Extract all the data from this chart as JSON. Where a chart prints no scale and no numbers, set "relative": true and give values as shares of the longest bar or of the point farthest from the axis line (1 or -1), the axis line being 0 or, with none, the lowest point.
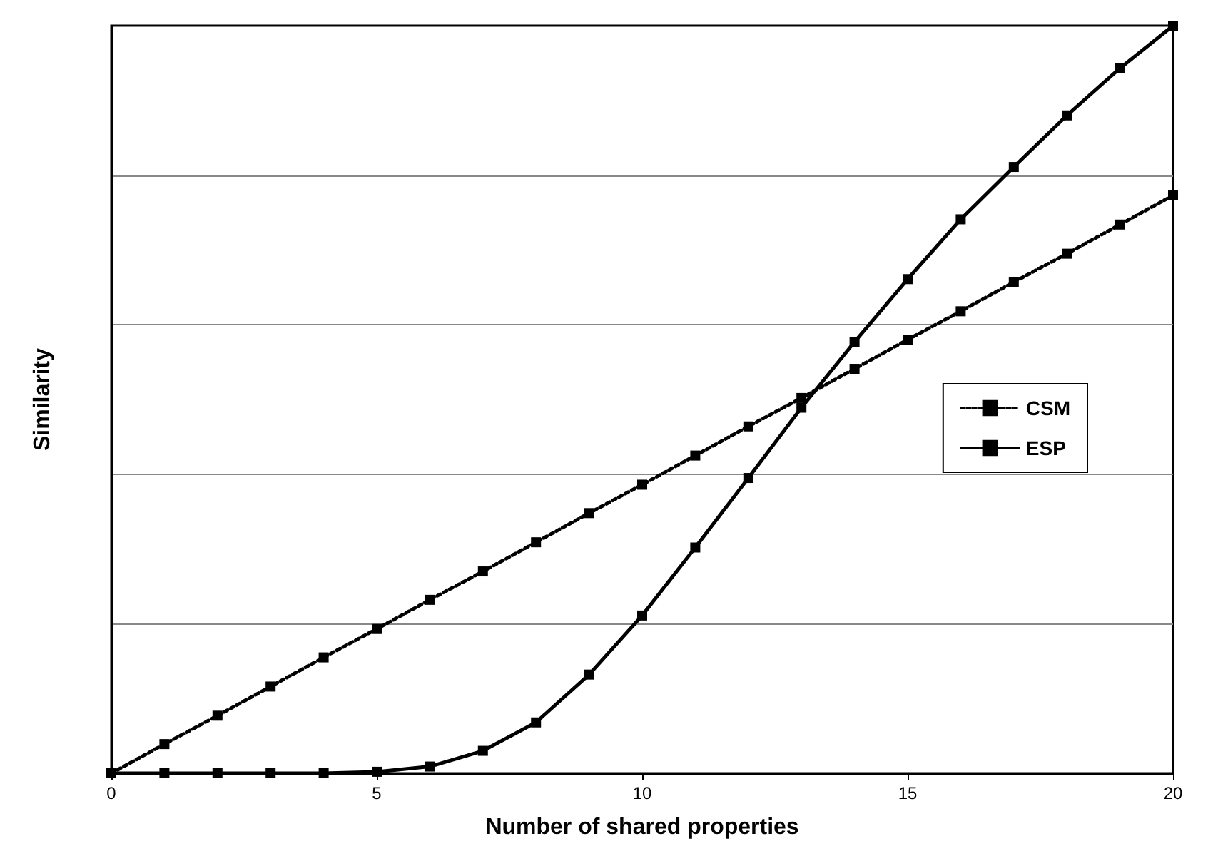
{
  "chart_data": {
    "type": "line",
    "xlabel": "Number of shared properties",
    "ylabel": "Similarity",
    "relative": true,
    "x": [
      0,
      1,
      2,
      3,
      4,
      5,
      6,
      7,
      8,
      9,
      10,
      11,
      12,
      13,
      14,
      15,
      16,
      17,
      18,
      19,
      20
    ],
    "xlim": [
      0,
      20
    ],
    "xticks": [
      0,
      5,
      10,
      15,
      20
    ],
    "grid": "y",
    "legend": "right",
    "marker": "square",
    "series": [
      {
        "name": "CSM",
        "color": "#000000",
        "line_style": "dotted",
        "values": [
          0,
          0.039,
          0.077,
          0.116,
          0.155,
          0.193,
          0.232,
          0.27,
          0.309,
          0.348,
          0.386,
          0.425,
          0.464,
          0.502,
          0.541,
          0.58,
          0.618,
          0.657,
          0.695,
          0.734,
          0.773
        ]
      },
      {
        "name": "ESP",
        "color": "#000000",
        "line_style": "solid",
        "values": [
          0,
          0,
          0,
          0,
          0,
          0.002,
          0.009,
          0.03,
          0.068,
          0.132,
          0.211,
          0.302,
          0.395,
          0.489,
          0.577,
          0.661,
          0.741,
          0.811,
          0.88,
          0.943,
          1
        ]
      }
    ]
  }
}
